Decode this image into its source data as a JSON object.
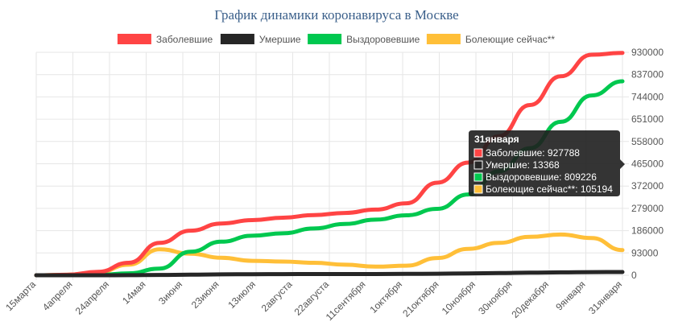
{
  "chart_data": {
    "type": "line",
    "title": "График динамики коронавируса в Москве",
    "legend_position": "top",
    "grid": true,
    "y_axis_position": "right",
    "ylim": [
      0,
      930000
    ],
    "y_ticks": [
      0,
      93000,
      186000,
      279000,
      372000,
      465000,
      558000,
      651000,
      744000,
      837000,
      930000
    ],
    "y_tick_labels": [
      "0",
      "93000",
      "186000",
      "279000",
      "372000",
      "465000",
      "558000",
      "651000",
      "744000",
      "837000",
      "930000"
    ],
    "x_tick_labels": [
      "15марта",
      "4апреля",
      "24апреля",
      "14мая",
      "3июня",
      "23июня",
      "13июля",
      "2августа",
      "22августа",
      "11сентября",
      "1октября",
      "21октября",
      "10ноября",
      "30ноября",
      "20декабря",
      "9января",
      "31января"
    ],
    "series": [
      {
        "name": "Заболевшие",
        "color": "#ff4444",
        "values": [
          0,
          2000,
          14000,
          52000,
          135000,
          186000,
          216000,
          230000,
          240000,
          251000,
          260000,
          274000,
          300000,
          386000,
          470000,
          580000,
          710000,
          830000,
          920000,
          927788
        ]
      },
      {
        "name": "Умершие",
        "color": "#262626",
        "values": [
          0,
          0,
          100,
          500,
          1200,
          2400,
          3600,
          4500,
          4800,
          4900,
          5100,
          5200,
          5600,
          6400,
          7800,
          9200,
          10700,
          12000,
          13000,
          13368
        ]
      },
      {
        "name": "Выздоровевшие",
        "color": "#00c84f",
        "values": [
          0,
          0,
          1000,
          8000,
          28000,
          98000,
          140000,
          165000,
          175000,
          195000,
          214000,
          232000,
          250000,
          277000,
          337000,
          434000,
          530000,
          640000,
          750000,
          809226
        ]
      },
      {
        "name": "Болеющие сейчас**",
        "color": "#ffbf38",
        "values": [
          0,
          2000,
          12000,
          44000,
          108000,
          90000,
          73000,
          60000,
          57000,
          52000,
          44000,
          36000,
          40000,
          72000,
          110000,
          135000,
          160000,
          170000,
          155000,
          105194
        ]
      }
    ]
  },
  "tooltip": {
    "title": "31января",
    "lines": [
      {
        "label": "Заболевшие: 927788",
        "color": "#ff4444"
      },
      {
        "label": "Умершие: 13368",
        "color": "#262626"
      },
      {
        "label": "Выздоровевшие: 809226",
        "color": "#00c84f"
      },
      {
        "label": "Болеющие сейчас**: 105194",
        "color": "#ffbf38"
      }
    ]
  }
}
